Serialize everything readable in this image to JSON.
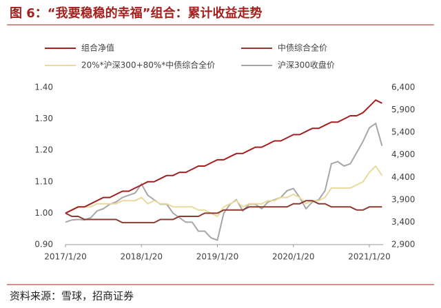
{
  "chart_data": {
    "type": "line",
    "title": "图 6：“我要稳稳的幸福”组合：累计收益走势",
    "source": "资料来源：雪球，招商证券",
    "x": [
      "2017/1/20",
      "2017/2/20",
      "2017/3/20",
      "2017/4/20",
      "2017/5/20",
      "2017/6/20",
      "2017/7/20",
      "2017/8/20",
      "2017/9/20",
      "2017/10/20",
      "2017/11/20",
      "2017/12/20",
      "2018/1/20",
      "2018/2/20",
      "2018/3/20",
      "2018/4/20",
      "2018/5/20",
      "2018/6/20",
      "2018/7/20",
      "2018/8/20",
      "2018/9/20",
      "2018/10/20",
      "2018/11/20",
      "2018/12/20",
      "2019/1/20",
      "2019/2/20",
      "2019/3/20",
      "2019/4/20",
      "2019/5/20",
      "2019/6/20",
      "2019/7/20",
      "2019/8/20",
      "2019/9/20",
      "2019/10/20",
      "2019/11/20",
      "2019/12/20",
      "2020/1/20",
      "2020/2/20",
      "2020/3/20",
      "2020/4/20",
      "2020/5/20",
      "2020/6/20",
      "2020/7/20",
      "2020/8/20",
      "2020/9/20",
      "2020/10/20",
      "2020/11/20",
      "2020/12/20",
      "2021/1/20",
      "2021/2/20",
      "2021/3/20"
    ],
    "xticks": [
      "2017/1/20",
      "2018/1/20",
      "2019/1/20",
      "2020/1/20",
      "2021/1/20"
    ],
    "ylim": [
      0.9,
      1.4
    ],
    "yticks": [
      {
        "value": 0.9,
        "label": "0.90"
      },
      {
        "value": 1.0,
        "label": "1.00"
      },
      {
        "value": 1.1,
        "label": "1.10"
      },
      {
        "value": 1.2,
        "label": "1.20"
      },
      {
        "value": 1.3,
        "label": "1.30"
      },
      {
        "value": 1.4,
        "label": "1.40"
      }
    ],
    "y2lim": [
      2900,
      6400
    ],
    "y2ticks": [
      {
        "value": 2900,
        "label": "2,900"
      },
      {
        "value": 3400,
        "label": "3,400"
      },
      {
        "value": 3900,
        "label": "3,900"
      },
      {
        "value": 4400,
        "label": "4,400"
      },
      {
        "value": 4900,
        "label": "4,900"
      },
      {
        "value": 5400,
        "label": "5,400"
      },
      {
        "value": 5900,
        "label": "5,900"
      },
      {
        "value": 6400,
        "label": "6,400"
      }
    ],
    "series": [
      {
        "name": "组合净值",
        "color": "#a31f1f",
        "values": [
          1.0,
          1.01,
          1.02,
          1.02,
          1.03,
          1.04,
          1.05,
          1.05,
          1.06,
          1.07,
          1.07,
          1.08,
          1.09,
          1.1,
          1.1,
          1.11,
          1.12,
          1.12,
          1.13,
          1.13,
          1.14,
          1.15,
          1.15,
          1.16,
          1.17,
          1.17,
          1.18,
          1.19,
          1.19,
          1.2,
          1.21,
          1.21,
          1.22,
          1.23,
          1.23,
          1.24,
          1.25,
          1.25,
          1.26,
          1.27,
          1.27,
          1.28,
          1.29,
          1.29,
          1.3,
          1.31,
          1.31,
          1.32,
          1.34,
          1.36,
          1.35
        ]
      },
      {
        "name": "中债综合全价",
        "color": "#8a3a30",
        "values": [
          1.0,
          0.99,
          0.99,
          0.98,
          0.98,
          0.98,
          0.98,
          0.98,
          0.98,
          0.97,
          0.97,
          0.97,
          0.97,
          0.97,
          0.97,
          0.98,
          0.98,
          0.98,
          0.99,
          0.99,
          0.99,
          0.99,
          1.0,
          1.0,
          1.0,
          1.01,
          1.01,
          1.01,
          1.01,
          1.02,
          1.02,
          1.02,
          1.02,
          1.02,
          1.02,
          1.02,
          1.03,
          1.03,
          1.04,
          1.04,
          1.03,
          1.03,
          1.02,
          1.02,
          1.02,
          1.02,
          1.01,
          1.01,
          1.02,
          1.02,
          1.02
        ]
      },
      {
        "name": "20%*沪深300+80%*中债综合全价",
        "color": "#e9da9c",
        "values": [
          1.0,
          1.01,
          1.02,
          1.02,
          1.02,
          1.03,
          1.03,
          1.03,
          1.03,
          1.04,
          1.04,
          1.04,
          1.05,
          1.03,
          1.04,
          1.03,
          1.03,
          1.02,
          1.02,
          1.02,
          1.02,
          1.01,
          1.01,
          1.0,
          0.99,
          1.02,
          1.03,
          1.04,
          1.02,
          1.03,
          1.03,
          1.03,
          1.04,
          1.04,
          1.05,
          1.05,
          1.06,
          1.05,
          1.03,
          1.04,
          1.04,
          1.05,
          1.08,
          1.08,
          1.08,
          1.08,
          1.09,
          1.1,
          1.13,
          1.15,
          1.12
        ]
      },
      {
        "name": "沪深300收盘价",
        "color": "#a6a6a6",
        "axis": "y2",
        "values": [
          3400,
          3450,
          3460,
          3450,
          3500,
          3650,
          3700,
          3800,
          3850,
          3950,
          4000,
          4050,
          4250,
          4000,
          3900,
          3800,
          3800,
          3600,
          3500,
          3400,
          3400,
          3200,
          3200,
          3050,
          3000,
          3600,
          3800,
          3900,
          3650,
          3800,
          3800,
          3700,
          3850,
          3900,
          3950,
          4100,
          4150,
          3950,
          3700,
          3850,
          3900,
          4100,
          4700,
          4750,
          4650,
          4700,
          4950,
          5200,
          5500,
          5600,
          5100
        ]
      }
    ]
  }
}
